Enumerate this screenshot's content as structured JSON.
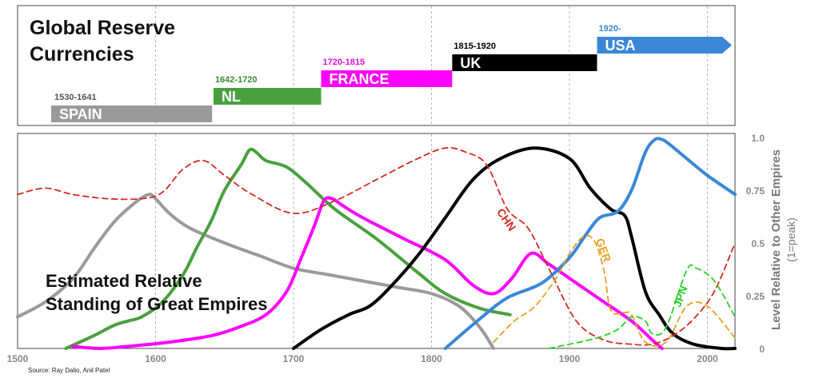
{
  "colors": {
    "spain": "#9a9a9a",
    "nl": "#4aa03f",
    "france": "#f0f",
    "uk": "#000000",
    "usa": "#3a87d8",
    "chn": "#d42a20",
    "ger": "#e8a020",
    "jpn": "#2bd12b",
    "grid": "#9a9a9a"
  },
  "timeline_panel": {
    "title_line1": "Global Reserve",
    "title_line2": "Currencies",
    "bars": [
      {
        "name": "SPAIN",
        "period": "1530-1641",
        "start": 1530,
        "end": 1641,
        "color": "#9a9a9a",
        "period_color": "#555555"
      },
      {
        "name": "NL",
        "period": "1642-1720",
        "start": 1642,
        "end": 1720,
        "color": "#4aa03f",
        "period_color": "#3a8a30"
      },
      {
        "name": "FRANCE",
        "period": "1720-1815",
        "start": 1720,
        "end": 1815,
        "color": "#f0f",
        "period_color": "#e010e0"
      },
      {
        "name": "UK",
        "period": "1815-1920",
        "start": 1815,
        "end": 1920,
        "color": "#000000",
        "period_color": "#000000"
      },
      {
        "name": "USA",
        "period": "1920-",
        "start": 1920,
        "end": 2020,
        "color": "#3a87d8",
        "period_color": "#3a87d8",
        "arrow": true
      }
    ]
  },
  "chart_data": {
    "type": "line",
    "title_line1": "Estimated Relative",
    "title_line2": "Standing of Great Empires",
    "ylabel_line1": "Level Relative to Other Empires",
    "ylabel_line2": "(1=peak)",
    "xlim": [
      1500,
      2020
    ],
    "ylim": [
      0,
      1
    ],
    "x_ticks": [
      "1500",
      "1600",
      "1700",
      "1800",
      "1900",
      "2000"
    ],
    "y_ticks": [
      "0",
      "0.25",
      "0.5",
      "0.75",
      "1.0"
    ],
    "grid": "vertical dashed",
    "series": [
      {
        "name": "",
        "key": "spain",
        "style": "solid",
        "x": [
          1500,
          1520,
          1540,
          1555,
          1570,
          1585,
          1595,
          1600,
          1610,
          1625,
          1650,
          1675,
          1700,
          1725,
          1750,
          1775,
          1800,
          1820,
          1835,
          1845
        ],
        "y": [
          0.15,
          0.22,
          0.33,
          0.47,
          0.6,
          0.69,
          0.73,
          0.71,
          0.64,
          0.57,
          0.5,
          0.44,
          0.38,
          0.35,
          0.32,
          0.29,
          0.26,
          0.2,
          0.1,
          0.0
        ]
      },
      {
        "name": "",
        "key": "nl",
        "style": "solid",
        "x": [
          1535,
          1555,
          1570,
          1580,
          1590,
          1605,
          1620,
          1630,
          1640,
          1650,
          1662,
          1668,
          1673,
          1680,
          1695,
          1710,
          1730,
          1760,
          1790,
          1810,
          1835,
          1857
        ],
        "y": [
          0.0,
          0.06,
          0.11,
          0.13,
          0.15,
          0.22,
          0.35,
          0.48,
          0.6,
          0.75,
          0.87,
          0.94,
          0.93,
          0.89,
          0.86,
          0.78,
          0.66,
          0.52,
          0.36,
          0.26,
          0.19,
          0.16
        ]
      },
      {
        "name": "",
        "key": "france",
        "style": "solid",
        "x": [
          1540,
          1560,
          1580,
          1610,
          1640,
          1660,
          1680,
          1695,
          1705,
          1715,
          1722,
          1728,
          1735,
          1750,
          1780,
          1810,
          1830,
          1845,
          1858,
          1872,
          1885,
          1905,
          1925,
          1945,
          1960,
          1967
        ],
        "y": [
          0.01,
          0.0,
          0.01,
          0.03,
          0.06,
          0.1,
          0.16,
          0.27,
          0.42,
          0.58,
          0.7,
          0.71,
          0.68,
          0.62,
          0.52,
          0.42,
          0.3,
          0.26,
          0.33,
          0.45,
          0.4,
          0.31,
          0.22,
          0.13,
          0.04,
          0.0
        ]
      },
      {
        "name": "",
        "key": "uk",
        "style": "solid",
        "x": [
          1700,
          1720,
          1740,
          1755,
          1770,
          1790,
          1810,
          1830,
          1850,
          1875,
          1900,
          1915,
          1930,
          1940,
          1945,
          1955,
          1965,
          1975,
          1990,
          2010,
          2020
        ],
        "y": [
          0.0,
          0.09,
          0.16,
          0.2,
          0.29,
          0.44,
          0.62,
          0.8,
          0.9,
          0.95,
          0.9,
          0.76,
          0.66,
          0.63,
          0.53,
          0.27,
          0.16,
          0.07,
          0.02,
          0.0,
          0.0
        ]
      },
      {
        "name": "",
        "key": "usa",
        "style": "solid",
        "x": [
          1810,
          1835,
          1855,
          1880,
          1900,
          1912,
          1922,
          1935,
          1945,
          1955,
          1962,
          1967,
          1972,
          1985,
          2000,
          2020
        ],
        "y": [
          0.0,
          0.14,
          0.24,
          0.31,
          0.43,
          0.54,
          0.62,
          0.65,
          0.75,
          0.93,
          0.99,
          0.99,
          0.97,
          0.9,
          0.82,
          0.73
        ]
      },
      {
        "name": "",
        "key": "chn",
        "style": "dashed",
        "x": [
          1500,
          1520,
          1540,
          1565,
          1590,
          1605,
          1620,
          1635,
          1650,
          1670,
          1700,
          1730,
          1760,
          1790,
          1810,
          1825,
          1840,
          1855,
          1870,
          1885,
          1905,
          1925,
          1945,
          1960,
          1975,
          1990,
          2005,
          2020
        ],
        "y": [
          0.73,
          0.76,
          0.73,
          0.71,
          0.71,
          0.74,
          0.85,
          0.89,
          0.82,
          0.73,
          0.64,
          0.7,
          0.8,
          0.9,
          0.95,
          0.93,
          0.87,
          0.66,
          0.57,
          0.38,
          0.13,
          0.04,
          0.02,
          0.02,
          0.06,
          0.14,
          0.27,
          0.5
        ]
      },
      {
        "name": "",
        "key": "ger",
        "style": "dashed",
        "x": [
          1845,
          1860,
          1875,
          1890,
          1900,
          1910,
          1918,
          1925,
          1930,
          1940,
          1945,
          1955,
          1970,
          1985,
          2000,
          2020
        ],
        "y": [
          0.03,
          0.13,
          0.2,
          0.33,
          0.45,
          0.53,
          0.51,
          0.37,
          0.18,
          0.17,
          0.16,
          0.03,
          0.03,
          0.2,
          0.2,
          0.05
        ]
      },
      {
        "name": "",
        "key": "jpn",
        "style": "dashed",
        "x": [
          1885,
          1900,
          1920,
          1935,
          1945,
          1955,
          1960,
          1970,
          1985,
          1992,
          2005,
          2020
        ],
        "y": [
          0.0,
          0.02,
          0.05,
          0.09,
          0.15,
          0.13,
          0.07,
          0.1,
          0.37,
          0.38,
          0.32,
          0.15
        ]
      }
    ],
    "annotations": [
      {
        "text": "CHN",
        "x": 1852,
        "y": 0.6,
        "color": "#d42a20",
        "angle": 55
      },
      {
        "text": "GER",
        "x": 1922,
        "y": 0.46,
        "color": "#e8a020",
        "angle": 70
      },
      {
        "text": "JPN",
        "x": 1983,
        "y": 0.24,
        "color": "#2bd12b",
        "angle": -70
      }
    ]
  },
  "source": "Source: Ray Dalio, Anil Patel"
}
